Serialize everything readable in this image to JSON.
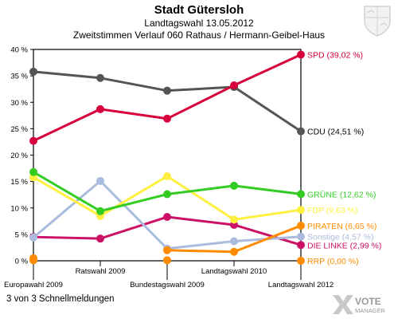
{
  "header": {
    "title": "Stadt Gütersloh",
    "subtitle1": "Landtagswahl 13.05.2012",
    "subtitle2": "Zweitstimmen Verlauf 060 Rathaus / Hermann-Geibel-Haus"
  },
  "footer": {
    "note": "3 von 3 Schnellmeldungen",
    "logo_line1": "VOTE",
    "logo_line2": "MANAGER"
  },
  "chart_data": {
    "type": "line",
    "categories": [
      "Europawahl 2009",
      "Ratswahl 2009",
      "Bundestagswahl 2009",
      "Landtagswahl 2010",
      "Landtagswahl 2012"
    ],
    "ylim": [
      0,
      40
    ],
    "yticks": [
      0,
      5,
      10,
      15,
      20,
      25,
      30,
      35,
      40
    ],
    "ytick_labels": [
      "0 %",
      "5 %",
      "10 %",
      "15 %",
      "20 %",
      "25 %",
      "30 %",
      "35 %",
      "40 %"
    ],
    "grid": false,
    "series": [
      {
        "label": "SPD (39,02 %)",
        "color": "#d8003c",
        "values": [
          22.7,
          28.7,
          26.9,
          33.2,
          39.02
        ]
      },
      {
        "label": "CDU (24,51 %)",
        "color": "#555555",
        "values": [
          35.8,
          34.6,
          32.2,
          32.9,
          24.51
        ]
      },
      {
        "label": "GRÜNE (12,62 %)",
        "color": "#33cc22",
        "values": [
          16.8,
          9.4,
          12.6,
          14.2,
          12.62
        ]
      },
      {
        "label": "FDP (9,63 %)",
        "color": "#fff040",
        "values": [
          15.8,
          8.5,
          16.0,
          7.8,
          9.63
        ]
      },
      {
        "label": "PIRATEN (6,65 %)",
        "color": "#ff8c00",
        "values": [
          0.5,
          null,
          2.0,
          1.7,
          6.65
        ]
      },
      {
        "label": "Sonstige (4,57 %)",
        "color": "#aabbdd",
        "values": [
          4.4,
          15.1,
          2.3,
          3.7,
          4.57
        ]
      },
      {
        "label": "DIE LINKE (2,99 %)",
        "color": "#cc1166",
        "values": [
          4.5,
          4.2,
          8.3,
          6.8,
          2.99
        ]
      },
      {
        "label": "RRP (0,00 %)",
        "color": "#ff8c00",
        "values": [
          0.1,
          null,
          0.1,
          null,
          0.0
        ]
      }
    ]
  }
}
